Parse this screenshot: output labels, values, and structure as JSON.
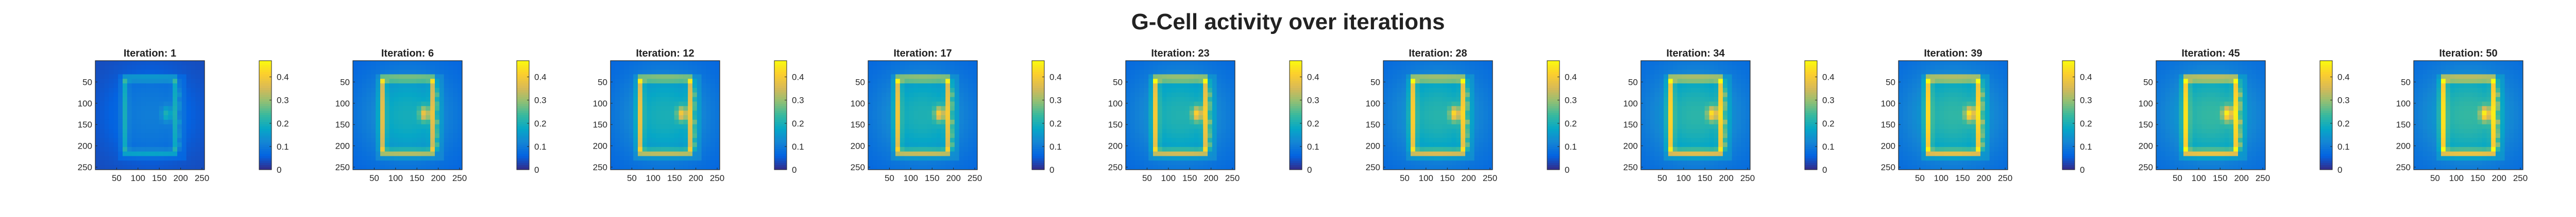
{
  "figure": {
    "title": "G-Cell activity over iterations"
  },
  "chart_data": {
    "type": "heatmap",
    "colormap": "parula",
    "clim": [
      0,
      0.47
    ],
    "panels": [
      {
        "title": "Iteration: 1",
        "iteration": 1
      },
      {
        "title": "Iteration: 6",
        "iteration": 6
      },
      {
        "title": "Iteration: 12",
        "iteration": 12
      },
      {
        "title": "Iteration: 17",
        "iteration": 17
      },
      {
        "title": "Iteration: 23",
        "iteration": 23
      },
      {
        "title": "Iteration: 28",
        "iteration": 28
      },
      {
        "title": "Iteration: 34",
        "iteration": 34
      },
      {
        "title": "Iteration: 39",
        "iteration": 39
      },
      {
        "title": "Iteration: 45",
        "iteration": 45
      },
      {
        "title": "Iteration: 50",
        "iteration": 50
      }
    ],
    "x_ticks": [
      "50",
      "100",
      "150",
      "200",
      "250"
    ],
    "y_ticks": [
      "50",
      "100",
      "150",
      "200",
      "250"
    ],
    "xlim": [
      1,
      256
    ],
    "ylim": [
      1,
      256
    ],
    "colorbar_ticks": [
      "0",
      "0.1",
      "0.2",
      "0.3",
      "0.4"
    ],
    "colorbar_values": [
      0,
      0.1,
      0.2,
      0.3,
      0.4
    ],
    "colors": {
      "parula": [
        "#352a87",
        "#0363e1",
        "#1485d4",
        "#06a7c6",
        "#38b99e",
        "#92bf73",
        "#d9ba56",
        "#fcce2e",
        "#f9fb0e"
      ]
    }
  }
}
